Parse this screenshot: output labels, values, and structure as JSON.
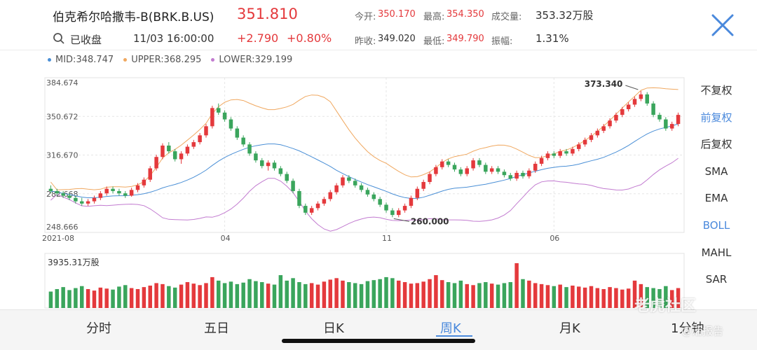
{
  "header": {
    "title": "伯克希尔哈撒韦-B(BRK.B.US)",
    "price": "351.810",
    "status": "已收盘",
    "datetime": "11/03 16:00:00",
    "change": "+2.790",
    "change_pct": "+0.80%",
    "stats": {
      "open_label": "今开:",
      "open": "350.170",
      "high_label": "最高:",
      "high": "354.350",
      "volume_label": "成交量:",
      "volume": "353.32万股",
      "prev_close_label": "昨收:",
      "prev_close": "349.020",
      "low_label": "最低:",
      "low": "349.790",
      "amplitude_label": "振幅:",
      "amplitude": "1.31%"
    }
  },
  "legend": {
    "mid": "MID:348.747",
    "upper": "UPPER:368.295",
    "lower": "LOWER:329.199"
  },
  "colors": {
    "up": "#e4393c",
    "down": "#3aa55c",
    "mid": "#4a8fd6",
    "upper": "#f0a860",
    "lower": "#c27bd0",
    "accent": "#4a89dc"
  },
  "side_menu": [
    "不复权",
    "前复权",
    "后复权",
    "SMA",
    "EMA",
    "BOLL",
    "MAHL",
    "SAR"
  ],
  "side_active": [
    "前复权",
    "BOLL"
  ],
  "volume_label": "3935.31万股",
  "tabs": [
    "分时",
    "五日",
    "日K",
    "周K",
    "月K",
    "1分钟"
  ],
  "active_tab": "周K",
  "watermark": {
    "brand": "老虎社区",
    "report": "@活报告"
  },
  "chart_data": {
    "type": "candlestick",
    "ylim": [
      248.666,
      384.674
    ],
    "y_ticks": [
      "384.674",
      "350.672",
      "316.670",
      "282.668",
      "248.666"
    ],
    "x_ticks": [
      "2021-08",
      "04",
      "11",
      "06"
    ],
    "annotations": {
      "max": "373.340",
      "min": "260.000"
    },
    "candles": [
      [
        287,
        285,
        290,
        283
      ],
      [
        285,
        283,
        287,
        281
      ],
      [
        283,
        281,
        285,
        279
      ],
      [
        281,
        279,
        283,
        277
      ],
      [
        279,
        276,
        281,
        274
      ],
      [
        276,
        274,
        279,
        272
      ],
      [
        274,
        276,
        278,
        272
      ],
      [
        276,
        279,
        281,
        274
      ],
      [
        279,
        283,
        285,
        277
      ],
      [
        283,
        287,
        289,
        281
      ],
      [
        287,
        285,
        289,
        283
      ],
      [
        285,
        283,
        287,
        281
      ],
      [
        283,
        281,
        285,
        279
      ],
      [
        281,
        286,
        288,
        280
      ],
      [
        286,
        290,
        292,
        284
      ],
      [
        290,
        295,
        297,
        288
      ],
      [
        295,
        305,
        307,
        293
      ],
      [
        305,
        315,
        317,
        303
      ],
      [
        315,
        325,
        327,
        313
      ],
      [
        325,
        320,
        328,
        318
      ],
      [
        320,
        313,
        322,
        311
      ],
      [
        313,
        318,
        320,
        309
      ],
      [
        318,
        324,
        326,
        316
      ],
      [
        324,
        328,
        330,
        322
      ],
      [
        328,
        334,
        336,
        326
      ],
      [
        334,
        342,
        344,
        332
      ],
      [
        342,
        358,
        360,
        340
      ],
      [
        358,
        354,
        362,
        352
      ],
      [
        354,
        348,
        356,
        346
      ],
      [
        348,
        340,
        350,
        338
      ],
      [
        340,
        332,
        342,
        330
      ],
      [
        332,
        326,
        334,
        324
      ],
      [
        326,
        318,
        328,
        316
      ],
      [
        318,
        312,
        320,
        310
      ],
      [
        312,
        307,
        314,
        305
      ],
      [
        307,
        310,
        312,
        303
      ],
      [
        310,
        305,
        312,
        303
      ],
      [
        305,
        300,
        307,
        298
      ],
      [
        300,
        294,
        302,
        292
      ],
      [
        294,
        285,
        296,
        283
      ],
      [
        285,
        272,
        287,
        270
      ],
      [
        272,
        266,
        274,
        264
      ],
      [
        266,
        270,
        272,
        264
      ],
      [
        270,
        274,
        276,
        268
      ],
      [
        274,
        278,
        280,
        272
      ],
      [
        278,
        284,
        286,
        276
      ],
      [
        284,
        290,
        292,
        282
      ],
      [
        290,
        297,
        299,
        288
      ],
      [
        297,
        294,
        299,
        292
      ],
      [
        294,
        290,
        296,
        288
      ],
      [
        290,
        286,
        292,
        284
      ],
      [
        286,
        282,
        288,
        280
      ],
      [
        282,
        278,
        284,
        276
      ],
      [
        278,
        273,
        280,
        271
      ],
      [
        273,
        268,
        275,
        266
      ],
      [
        268,
        264,
        270,
        262
      ],
      [
        264,
        268,
        270,
        262
      ],
      [
        268,
        272,
        274,
        266
      ],
      [
        272,
        279,
        281,
        270
      ],
      [
        279,
        287,
        289,
        277
      ],
      [
        287,
        293,
        295,
        285
      ],
      [
        293,
        300,
        302,
        291
      ],
      [
        300,
        306,
        308,
        298
      ],
      [
        306,
        311,
        313,
        304
      ],
      [
        311,
        308,
        313,
        306
      ],
      [
        308,
        304,
        310,
        302
      ],
      [
        304,
        300,
        306,
        298
      ],
      [
        300,
        305,
        307,
        298
      ],
      [
        305,
        312,
        314,
        303
      ],
      [
        312,
        308,
        314,
        306
      ],
      [
        308,
        302,
        310,
        300
      ],
      [
        302,
        305,
        307,
        300
      ],
      [
        305,
        302,
        307,
        300
      ],
      [
        302,
        299,
        304,
        297
      ],
      [
        299,
        296,
        301,
        294
      ],
      [
        296,
        301,
        303,
        294
      ],
      [
        301,
        298,
        303,
        296
      ],
      [
        298,
        303,
        305,
        296
      ],
      [
        303,
        309,
        311,
        301
      ],
      [
        309,
        314,
        316,
        307
      ],
      [
        314,
        318,
        320,
        312
      ],
      [
        318,
        316,
        320,
        314
      ],
      [
        316,
        320,
        322,
        314
      ],
      [
        320,
        318,
        322,
        316
      ],
      [
        318,
        322,
        324,
        316
      ],
      [
        322,
        326,
        328,
        320
      ],
      [
        326,
        330,
        332,
        324
      ],
      [
        330,
        334,
        336,
        328
      ],
      [
        334,
        338,
        340,
        332
      ],
      [
        338,
        342,
        344,
        336
      ],
      [
        342,
        347,
        349,
        340
      ],
      [
        347,
        352,
        354,
        345
      ],
      [
        352,
        357,
        359,
        350
      ],
      [
        357,
        361,
        363,
        355
      ],
      [
        361,
        366,
        368,
        359
      ],
      [
        366,
        370,
        373,
        364
      ],
      [
        370,
        362,
        372,
        360
      ],
      [
        362,
        352,
        364,
        350
      ],
      [
        352,
        348,
        354,
        346
      ],
      [
        348,
        340,
        350,
        338
      ],
      [
        340,
        344,
        346,
        338
      ],
      [
        344,
        352,
        354,
        342
      ]
    ],
    "volumes": [
      0.33,
      0.38,
      0.42,
      0.36,
      0.4,
      0.44,
      0.38,
      0.35,
      0.41,
      0.39,
      0.37,
      0.43,
      0.46,
      0.4,
      0.38,
      0.42,
      0.45,
      0.5,
      0.48,
      0.44,
      0.41,
      0.47,
      0.52,
      0.49,
      0.46,
      0.5,
      0.62,
      0.55,
      0.5,
      0.53,
      0.48,
      0.51,
      0.58,
      0.54,
      0.52,
      0.49,
      0.47,
      0.66,
      0.55,
      0.6,
      0.52,
      0.48,
      0.5,
      0.47,
      0.53,
      0.57,
      0.6,
      0.55,
      0.52,
      0.5,
      0.48,
      0.54,
      0.56,
      0.58,
      0.62,
      0.6,
      0.55,
      0.52,
      0.49,
      0.5,
      0.53,
      0.58,
      0.66,
      0.56,
      0.52,
      0.5,
      0.55,
      0.48,
      0.46,
      0.5,
      0.52,
      0.49,
      0.47,
      0.5,
      0.52,
      0.9,
      0.58,
      0.55,
      0.5,
      0.48,
      0.46,
      0.44,
      0.47,
      0.42,
      0.45,
      0.43,
      0.41,
      0.44,
      0.4,
      0.38,
      0.42,
      0.4,
      0.37,
      0.39,
      0.55,
      0.48,
      0.42,
      0.4,
      0.38,
      0.44,
      0.36,
      0.4
    ]
  }
}
